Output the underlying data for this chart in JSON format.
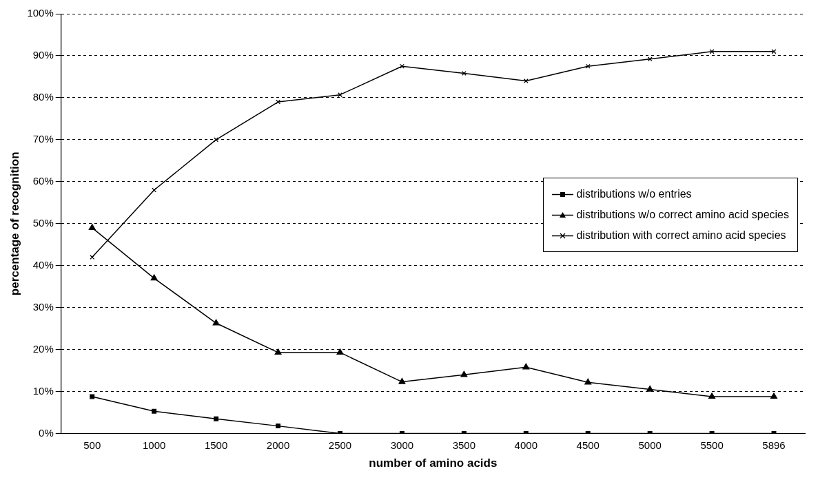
{
  "chart_data": {
    "type": "line",
    "xlabel": "number of amino acids",
    "ylabel": "percentage of recognition",
    "categories": [
      "500",
      "1000",
      "1500",
      "2000",
      "2500",
      "3000",
      "3500",
      "4000",
      "4500",
      "5000",
      "5500",
      "5896"
    ],
    "series": [
      {
        "name": "distributions w/o entries",
        "color": "#000000",
        "marker": "square",
        "values": [
          8.8,
          5.3,
          3.5,
          1.8,
          0,
          0,
          0,
          0,
          0,
          0,
          0,
          0
        ]
      },
      {
        "name": "distributions w/o correct amino acid species",
        "color": "#000000",
        "marker": "triangle",
        "values": [
          49,
          37,
          26.3,
          19.3,
          19.3,
          12.3,
          14,
          15.8,
          12.2,
          10.5,
          8.8,
          8.8
        ]
      },
      {
        "name": "distribution with correct amino acid species",
        "color": "#000000",
        "marker": "cross",
        "values": [
          42,
          58,
          70,
          79,
          80.7,
          87.5,
          85.8,
          84,
          87.5,
          89.2,
          91,
          91
        ]
      }
    ],
    "ylim": [
      0,
      100
    ],
    "yticks": [
      {
        "value": 0,
        "label": "0%"
      },
      {
        "value": 10,
        "label": "10%"
      },
      {
        "value": 20,
        "label": "20%"
      },
      {
        "value": 30,
        "label": "30%"
      },
      {
        "value": 40,
        "label": "40%"
      },
      {
        "value": 50,
        "label": "50%"
      },
      {
        "value": 60,
        "label": "60%"
      },
      {
        "value": 70,
        "label": "70%"
      },
      {
        "value": 80,
        "label": "80%"
      },
      {
        "value": 90,
        "label": "90%"
      },
      {
        "value": 100,
        "label": "100%"
      }
    ],
    "grid": "y",
    "legend": "right",
    "line_style": "solid"
  }
}
